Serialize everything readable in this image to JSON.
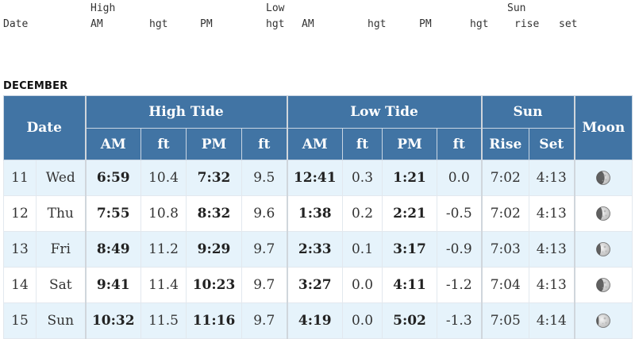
{
  "legacy_header": {
    "row1": [
      "High",
      "Low",
      "Sun"
    ],
    "row2": [
      "Date",
      "AM",
      "hgt",
      "PM",
      "hgt",
      "AM",
      "hgt",
      "PM",
      "hgt",
      "rise",
      "set"
    ]
  },
  "month": "DECEMBER",
  "headers": {
    "date": "Date",
    "high_tide": "High Tide",
    "low_tide": "Low Tide",
    "sun": "Sun",
    "moon": "Moon",
    "am": "AM",
    "ft": "ft",
    "pm": "PM",
    "rise": "Rise",
    "set": "Set"
  },
  "rows": [
    {
      "day": "11",
      "weekday": "Wed",
      "high_am": "6:59",
      "high_am_ft": "10.4",
      "high_pm": "7:32",
      "high_pm_ft": "9.5",
      "low_am": "12:41",
      "low_am_ft": "0.3",
      "low_pm": "1:21",
      "low_pm_ft": "0.0",
      "rise": "7:02",
      "set": "4:13",
      "moon": "waning-gibbous-icon",
      "phase": 0.55
    },
    {
      "day": "12",
      "weekday": "Thu",
      "high_am": "7:55",
      "high_am_ft": "10.8",
      "high_pm": "8:32",
      "high_pm_ft": "9.6",
      "low_am": "1:38",
      "low_am_ft": "0.2",
      "low_pm": "2:21",
      "low_pm_ft": "-0.5",
      "rise": "7:02",
      "set": "4:13",
      "moon": "waning-gibbous-icon",
      "phase": 0.7
    },
    {
      "day": "13",
      "weekday": "Fri",
      "high_am": "8:49",
      "high_am_ft": "11.2",
      "high_pm": "9:29",
      "high_pm_ft": "9.7",
      "low_am": "2:33",
      "low_am_ft": "0.1",
      "low_pm": "3:17",
      "low_pm_ft": "-0.9",
      "rise": "7:03",
      "set": "4:13",
      "moon": "waning-gibbous-icon",
      "phase": 0.8
    },
    {
      "day": "14",
      "weekday": "Sat",
      "high_am": "9:41",
      "high_am_ft": "11.4",
      "high_pm": "10:23",
      "high_pm_ft": "9.7",
      "low_am": "3:27",
      "low_am_ft": "0.0",
      "low_pm": "4:11",
      "low_pm_ft": "-1.2",
      "rise": "7:04",
      "set": "4:13",
      "moon": "waning-gibbous-icon",
      "phase": 0.6
    },
    {
      "day": "15",
      "weekday": "Sun",
      "high_am": "10:32",
      "high_am_ft": "11.5",
      "high_pm": "11:16",
      "high_pm_ft": "9.7",
      "low_am": "4:19",
      "low_am_ft": "0.0",
      "low_pm": "5:02",
      "low_pm_ft": "-1.3",
      "rise": "7:05",
      "set": "4:14",
      "moon": "full-moon-icon",
      "phase": 0.95
    }
  ]
}
